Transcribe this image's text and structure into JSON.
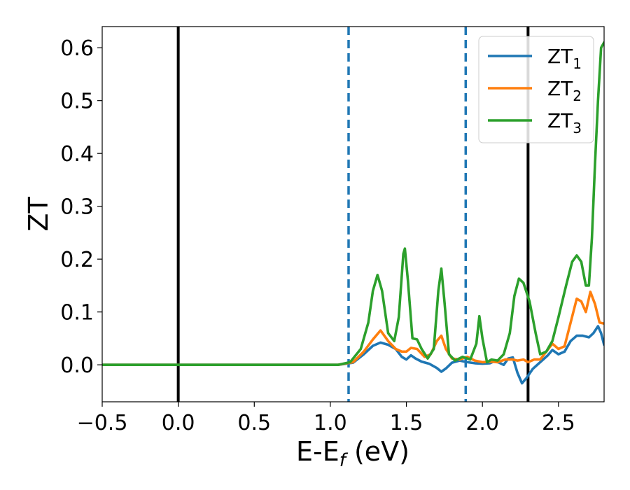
{
  "chart_data": {
    "type": "line",
    "title": "",
    "xlabel": "E-E",
    "xlabel_subscript": "f",
    "xlabel_suffix": " (eV)",
    "ylabel": "ZT",
    "xlim": [
      -0.5,
      2.8
    ],
    "ylim": [
      -0.07,
      0.64
    ],
    "x_ticks": [
      -0.5,
      0.0,
      0.5,
      1.0,
      1.5,
      2.0,
      2.5
    ],
    "x_tick_labels": [
      "−0.5",
      "0.0",
      "0.5",
      "1.0",
      "1.5",
      "2.0",
      "2.5"
    ],
    "y_ticks": [
      0.0,
      0.1,
      0.2,
      0.3,
      0.4,
      0.5,
      0.6
    ],
    "y_tick_labels": [
      "0.0",
      "0.1",
      "0.2",
      "0.3",
      "0.4",
      "0.5",
      "0.6"
    ],
    "grid": false,
    "legend_position": "top-right",
    "vertical_lines": [
      {
        "x": 0.0,
        "style": "solid",
        "color": "#000000"
      },
      {
        "x": 2.3,
        "style": "solid",
        "color": "#000000"
      },
      {
        "x": 1.12,
        "style": "dashed",
        "color": "#1f77b4"
      },
      {
        "x": 1.89,
        "style": "dashed",
        "color": "#1f77b4"
      }
    ],
    "series": [
      {
        "name": "ZT",
        "name_subscript": "1",
        "color": "#1f77b4",
        "points": [
          [
            -0.5,
            0.0
          ],
          [
            1.05,
            0.0
          ],
          [
            1.15,
            0.004
          ],
          [
            1.22,
            0.02
          ],
          [
            1.28,
            0.036
          ],
          [
            1.33,
            0.042
          ],
          [
            1.38,
            0.038
          ],
          [
            1.43,
            0.03
          ],
          [
            1.47,
            0.015
          ],
          [
            1.5,
            0.01
          ],
          [
            1.53,
            0.018
          ],
          [
            1.56,
            0.012
          ],
          [
            1.6,
            0.006
          ],
          [
            1.65,
            0.002
          ],
          [
            1.7,
            -0.006
          ],
          [
            1.73,
            -0.013
          ],
          [
            1.76,
            -0.007
          ],
          [
            1.8,
            0.004
          ],
          [
            1.85,
            0.008
          ],
          [
            1.9,
            0.005
          ],
          [
            1.95,
            0.003
          ],
          [
            2.0,
            0.002
          ],
          [
            2.05,
            0.003
          ],
          [
            2.08,
            0.007
          ],
          [
            2.11,
            0.004
          ],
          [
            2.14,
            0.0
          ],
          [
            2.17,
            0.012
          ],
          [
            2.2,
            0.014
          ],
          [
            2.23,
            -0.015
          ],
          [
            2.26,
            -0.035
          ],
          [
            2.29,
            -0.025
          ],
          [
            2.33,
            -0.008
          ],
          [
            2.38,
            0.005
          ],
          [
            2.43,
            0.018
          ],
          [
            2.46,
            0.028
          ],
          [
            2.5,
            0.02
          ],
          [
            2.54,
            0.025
          ],
          [
            2.58,
            0.045
          ],
          [
            2.62,
            0.055
          ],
          [
            2.66,
            0.055
          ],
          [
            2.7,
            0.052
          ],
          [
            2.73,
            0.06
          ],
          [
            2.76,
            0.073
          ],
          [
            2.78,
            0.06
          ],
          [
            2.8,
            0.038
          ]
        ]
      },
      {
        "name": "ZT",
        "name_subscript": "2",
        "color": "#ff7f0e",
        "points": [
          [
            -0.5,
            0.0
          ],
          [
            1.05,
            0.0
          ],
          [
            1.15,
            0.005
          ],
          [
            1.22,
            0.025
          ],
          [
            1.28,
            0.048
          ],
          [
            1.33,
            0.065
          ],
          [
            1.38,
            0.045
          ],
          [
            1.43,
            0.03
          ],
          [
            1.47,
            0.025
          ],
          [
            1.5,
            0.025
          ],
          [
            1.53,
            0.032
          ],
          [
            1.57,
            0.03
          ],
          [
            1.62,
            0.015
          ],
          [
            1.66,
            0.02
          ],
          [
            1.7,
            0.045
          ],
          [
            1.73,
            0.055
          ],
          [
            1.76,
            0.03
          ],
          [
            1.8,
            0.012
          ],
          [
            1.85,
            0.01
          ],
          [
            1.9,
            0.015
          ],
          [
            1.95,
            0.008
          ],
          [
            2.0,
            0.005
          ],
          [
            2.05,
            0.006
          ],
          [
            2.1,
            0.005
          ],
          [
            2.15,
            0.01
          ],
          [
            2.2,
            0.01
          ],
          [
            2.23,
            0.008
          ],
          [
            2.27,
            0.01
          ],
          [
            2.3,
            0.005
          ],
          [
            2.34,
            0.01
          ],
          [
            2.38,
            0.01
          ],
          [
            2.42,
            0.025
          ],
          [
            2.46,
            0.04
          ],
          [
            2.5,
            0.03
          ],
          [
            2.54,
            0.035
          ],
          [
            2.58,
            0.08
          ],
          [
            2.62,
            0.125
          ],
          [
            2.65,
            0.12
          ],
          [
            2.68,
            0.1
          ],
          [
            2.71,
            0.138
          ],
          [
            2.74,
            0.115
          ],
          [
            2.77,
            0.08
          ],
          [
            2.8,
            0.078
          ]
        ]
      },
      {
        "name": "ZT",
        "name_subscript": "3",
        "color": "#2ca02c",
        "points": [
          [
            -0.5,
            0.0
          ],
          [
            1.05,
            0.0
          ],
          [
            1.13,
            0.005
          ],
          [
            1.2,
            0.03
          ],
          [
            1.25,
            0.08
          ],
          [
            1.28,
            0.14
          ],
          [
            1.31,
            0.17
          ],
          [
            1.34,
            0.14
          ],
          [
            1.38,
            0.06
          ],
          [
            1.42,
            0.045
          ],
          [
            1.45,
            0.09
          ],
          [
            1.48,
            0.21
          ],
          [
            1.49,
            0.22
          ],
          [
            1.51,
            0.16
          ],
          [
            1.54,
            0.05
          ],
          [
            1.57,
            0.048
          ],
          [
            1.6,
            0.03
          ],
          [
            1.64,
            0.012
          ],
          [
            1.68,
            0.03
          ],
          [
            1.71,
            0.14
          ],
          [
            1.73,
            0.182
          ],
          [
            1.75,
            0.12
          ],
          [
            1.78,
            0.02
          ],
          [
            1.82,
            0.008
          ],
          [
            1.87,
            0.015
          ],
          [
            1.92,
            0.01
          ],
          [
            1.96,
            0.04
          ],
          [
            1.98,
            0.092
          ],
          [
            2.0,
            0.05
          ],
          [
            2.03,
            0.005
          ],
          [
            2.06,
            0.01
          ],
          [
            2.1,
            0.008
          ],
          [
            2.14,
            0.02
          ],
          [
            2.18,
            0.06
          ],
          [
            2.21,
            0.13
          ],
          [
            2.24,
            0.163
          ],
          [
            2.27,
            0.155
          ],
          [
            2.31,
            0.12
          ],
          [
            2.35,
            0.06
          ],
          [
            2.38,
            0.02
          ],
          [
            2.42,
            0.025
          ],
          [
            2.46,
            0.045
          ],
          [
            2.5,
            0.09
          ],
          [
            2.55,
            0.15
          ],
          [
            2.59,
            0.195
          ],
          [
            2.62,
            0.207
          ],
          [
            2.65,
            0.195
          ],
          [
            2.68,
            0.15
          ],
          [
            2.7,
            0.15
          ],
          [
            2.72,
            0.24
          ],
          [
            2.74,
            0.38
          ],
          [
            2.76,
            0.5
          ],
          [
            2.78,
            0.6
          ],
          [
            2.8,
            0.61
          ]
        ]
      }
    ]
  }
}
